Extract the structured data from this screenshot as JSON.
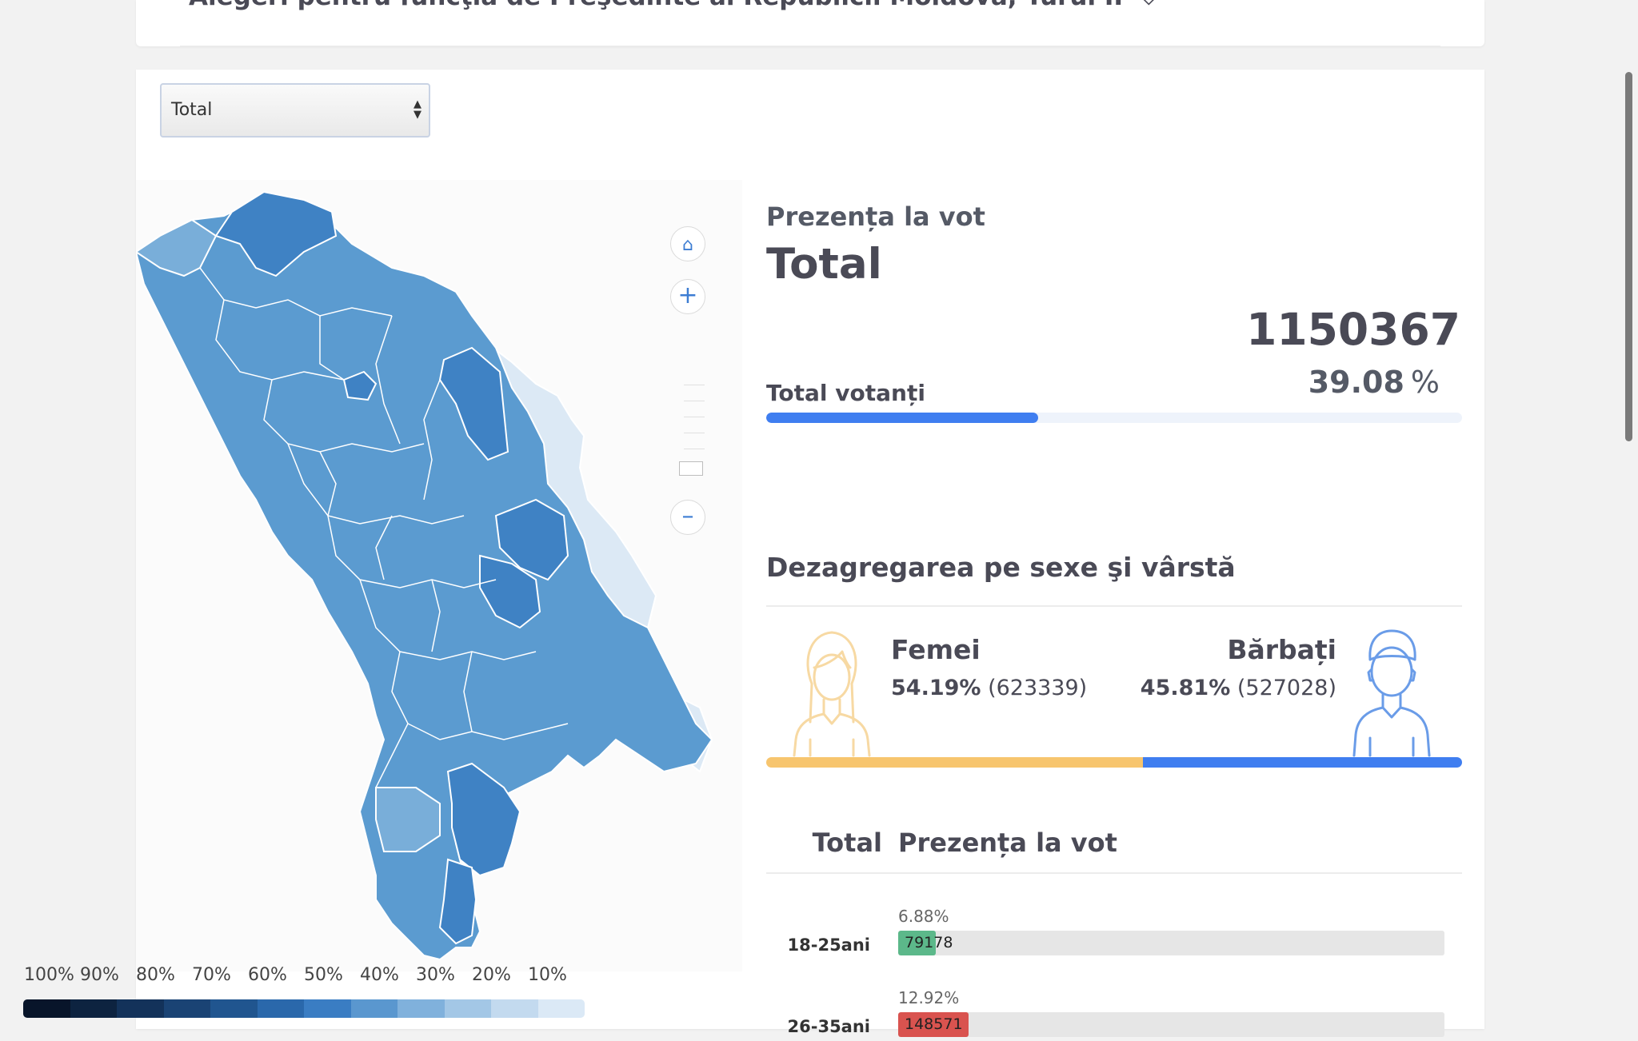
{
  "header": {
    "title": "Alegeri pentru funcţia de Preşedinte al Republicii Moldova, Turul II"
  },
  "filter": {
    "selected": "Total"
  },
  "map": {
    "legend": [
      "100%",
      "90%",
      "80%",
      "70%",
      "60%",
      "50%",
      "40%",
      "30%",
      "20%",
      "10%"
    ],
    "legend_colors": [
      "#08152a",
      "#0d2340",
      "#13325a",
      "#1a4374",
      "#20558f",
      "#2a68ab",
      "#3a7dc3",
      "#5a97cf",
      "#80b1dc",
      "#a3c7e6",
      "#c3daef",
      "#dbe9f6"
    ],
    "region_colors": {
      "strong": "#3f82c4",
      "mid": "#5b9bd0",
      "light": "#79aed9",
      "pale": "#dce9f5"
    },
    "controls": {
      "home_icon": "home-icon",
      "zoom_in_icon": "plus-icon",
      "zoom_out_icon": "minus-icon"
    }
  },
  "turnout": {
    "subtitle": "Prezența la vot",
    "title": "Total",
    "total_voters": "1150367",
    "percent": "39.08",
    "percent_sign": "%",
    "total_voters_label": "Total votanți",
    "progress_fraction": 0.3908,
    "bar_color": "#3f7ef0"
  },
  "gender": {
    "title": "Dezagregarea pe sexe şi vârstă",
    "women": {
      "label": "Femei",
      "percent": "54.19%",
      "count": "(623339)",
      "fraction": 0.5419,
      "color": "#f7c56e"
    },
    "men": {
      "label": "Bărbați",
      "percent": "45.81%",
      "count": "(527028)",
      "fraction": 0.4581,
      "color": "#3f7ef0"
    }
  },
  "age": {
    "header_total": "Total",
    "header_turnout": "Prezența la vot",
    "rows": [
      {
        "label": "18-25ani",
        "percent": "6.88%",
        "count": "79178",
        "fraction": 0.0688,
        "color": "#5cb88a"
      },
      {
        "label": "26-35ani",
        "percent": "12.92%",
        "count": "148571",
        "fraction": 0.1292,
        "color": "#d9534f"
      }
    ]
  }
}
